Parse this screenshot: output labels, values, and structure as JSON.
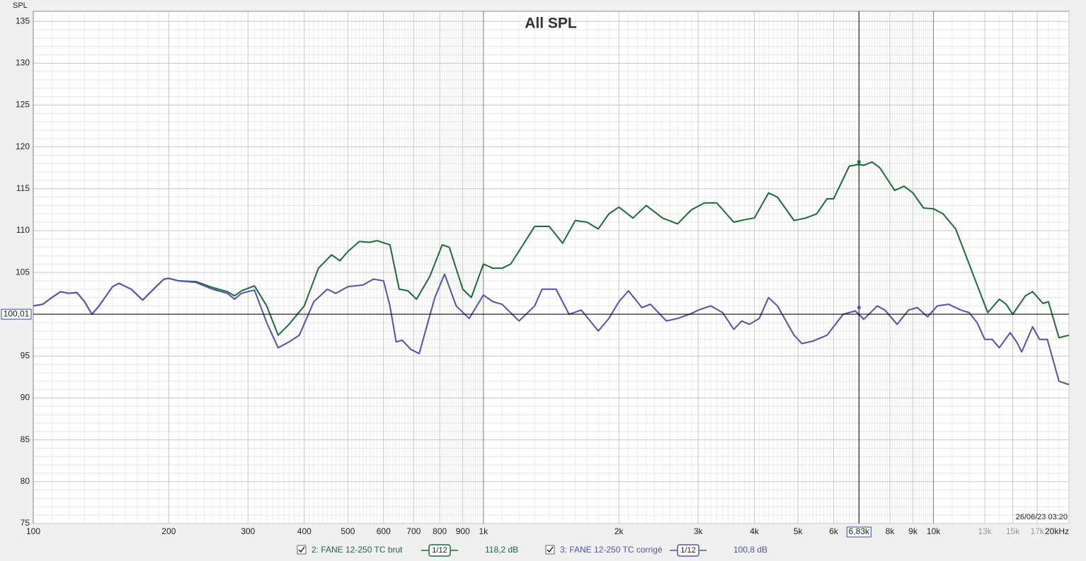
{
  "chart_data": {
    "type": "line",
    "title": "All SPL",
    "y_label": "SPL",
    "timestamp": "26/06/23 03:20",
    "xscale": "log",
    "grid": true,
    "xlim": [
      100,
      20000
    ],
    "ylim": [
      75,
      136.2
    ],
    "yticks": [
      75,
      80,
      85,
      90,
      95,
      100,
      105,
      110,
      115,
      120,
      125,
      130,
      135
    ],
    "xticks": [
      100,
      200,
      300,
      400,
      500,
      600,
      700,
      800,
      900,
      {
        "value": 1000,
        "label": "1k"
      },
      {
        "value": 2000,
        "label": "2k"
      },
      {
        "value": 3000,
        "label": "3k"
      },
      {
        "value": 4000,
        "label": "4k"
      },
      {
        "value": 5000,
        "label": "5k"
      },
      {
        "value": 6000,
        "label": "6k"
      },
      {
        "value": 8000,
        "label": "8k"
      },
      {
        "value": 9000,
        "label": "9k"
      },
      {
        "value": 10000,
        "label": "10k"
      },
      {
        "value": 13000,
        "label": "13k"
      },
      {
        "value": 15000,
        "label": "15k"
      },
      {
        "value": 17000,
        "label": "17k"
      },
      {
        "value": 20000,
        "label": "20kHz"
      }
    ],
    "cursor": {
      "x": {
        "value": 6830,
        "label": "6,83k"
      },
      "y": {
        "value": 100.01,
        "label": "100,01"
      }
    },
    "series": [
      {
        "name": "2: FANE 12-250 TC brut",
        "color": "#1d6a3a",
        "smoothing": "1/12",
        "readout": {
          "value": 118.2,
          "label": "118,2 dB"
        },
        "x": [
          100,
          105,
          110,
          115,
          120,
          125,
          130,
          135,
          140,
          150,
          155,
          165,
          175,
          185,
          195,
          200,
          210,
          230,
          250,
          270,
          280,
          290,
          310,
          330,
          350,
          370,
          400,
          430,
          460,
          480,
          500,
          530,
          560,
          580,
          620,
          650,
          680,
          710,
          760,
          810,
          840,
          900,
          940,
          1000,
          1050,
          1100,
          1150,
          1300,
          1400,
          1500,
          1600,
          1700,
          1800,
          1900,
          2000,
          2150,
          2300,
          2500,
          2700,
          2900,
          3100,
          3300,
          3600,
          3800,
          4000,
          4300,
          4500,
          4900,
          5200,
          5500,
          5800,
          6000,
          6500,
          6800,
          7000,
          7300,
          7600,
          8200,
          8600,
          9000,
          9500,
          10000,
          10500,
          11200,
          12000,
          12500,
          13200,
          14000,
          14500,
          15000,
          16000,
          16600,
          17500,
          18000,
          19000,
          20000
        ],
        "values": [
          101,
          101.2,
          102,
          102.7,
          102.5,
          102.6,
          101.5,
          100,
          101,
          103.3,
          103.7,
          103,
          101.7,
          103,
          104.2,
          104.3,
          104,
          103.9,
          103.2,
          102.7,
          102.2,
          102.8,
          103.4,
          101,
          97.5,
          98.8,
          101,
          105.5,
          107.1,
          106.4,
          107.5,
          108.7,
          108.6,
          108.8,
          108.3,
          103,
          102.8,
          101.8,
          104.5,
          108.3,
          108,
          103,
          102,
          106,
          105.5,
          105.5,
          106,
          110.5,
          110.5,
          108.5,
          111.2,
          111,
          110.2,
          112,
          112.8,
          111.5,
          113,
          111.5,
          110.8,
          112.5,
          113.3,
          113.3,
          111,
          111.3,
          111.5,
          114.5,
          114,
          111.2,
          111.5,
          112,
          113.8,
          113.8,
          117.7,
          117.9,
          117.8,
          118.2,
          117.5,
          114.8,
          115.3,
          114.5,
          112.7,
          112.6,
          112,
          110.2,
          106,
          103.5,
          100.2,
          101.8,
          101.2,
          100,
          102.2,
          102.7,
          101.3,
          101.5,
          97.2,
          97.5
        ]
      },
      {
        "name": "3: FANE 12-250 TC corrigé",
        "color": "#5252aa",
        "smoothing": "1/12",
        "readout": {
          "value": 100.8,
          "label": "100,8 dB"
        },
        "x": [
          100,
          105,
          110,
          115,
          120,
          125,
          130,
          135,
          140,
          150,
          155,
          165,
          175,
          185,
          195,
          200,
          210,
          230,
          250,
          270,
          280,
          290,
          310,
          330,
          350,
          370,
          390,
          420,
          450,
          470,
          500,
          540,
          570,
          600,
          620,
          640,
          660,
          690,
          720,
          780,
          820,
          870,
          930,
          1000,
          1050,
          1100,
          1200,
          1300,
          1350,
          1450,
          1550,
          1650,
          1800,
          1900,
          2000,
          2100,
          2250,
          2350,
          2550,
          2700,
          2900,
          3000,
          3200,
          3400,
          3600,
          3750,
          3900,
          4100,
          4300,
          4500,
          4900,
          5100,
          5400,
          5800,
          6300,
          6700,
          7000,
          7500,
          7800,
          8300,
          8800,
          9200,
          9700,
          10200,
          10800,
          11500,
          12000,
          12500,
          13000,
          13500,
          14000,
          14800,
          15300,
          15700,
          16600,
          17200,
          17900,
          19000,
          20000
        ],
        "values": [
          101,
          101.2,
          102,
          102.7,
          102.5,
          102.6,
          101.5,
          100,
          101,
          103.3,
          103.7,
          103,
          101.7,
          103,
          104.2,
          104.3,
          104,
          103.8,
          103,
          102.5,
          101.8,
          102.5,
          102.9,
          99,
          96,
          96.7,
          97.5,
          101.5,
          103,
          102.5,
          103.3,
          103.5,
          104.2,
          104,
          101,
          96.7,
          96.9,
          95.8,
          95.3,
          102,
          104.8,
          101,
          99.5,
          102.3,
          101.5,
          101.2,
          99.2,
          101,
          103,
          103,
          100,
          100.5,
          98,
          99.5,
          101.5,
          102.8,
          100.8,
          101.2,
          99.2,
          99.5,
          100.1,
          100.5,
          101,
          100.2,
          98.2,
          99.2,
          98.8,
          99.5,
          102,
          101,
          97.5,
          96.5,
          96.8,
          97.5,
          100,
          100.4,
          99.4,
          101,
          100.5,
          98.8,
          100.5,
          100.8,
          99.7,
          101,
          101.2,
          100.5,
          100.2,
          99,
          97,
          97,
          96,
          97.8,
          96.7,
          95.5,
          98.5,
          97,
          97,
          92,
          91.6
        ]
      }
    ]
  }
}
